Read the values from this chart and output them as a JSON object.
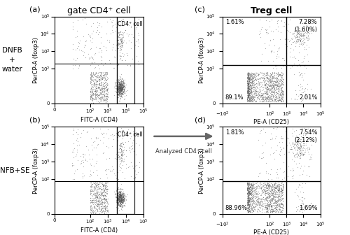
{
  "title_left": "gate CD4⁺ cell",
  "title_right": "Treg cell",
  "label_a": "(a)",
  "label_b": "(b)",
  "label_c": "(c)",
  "label_d": "(d)",
  "side_label_top": "DNFB\n+\nwater",
  "side_label_bot": "DNFB+SE",
  "xlabel_ab": "FITC-A (CD4)",
  "xlabel_cd": "PE-A (CD25)",
  "ylabel_abcd": "PerCP-A (foxp3)",
  "arrow_text": "Analyzed CD4⁺ cell",
  "gate_label": "CD4⁺ cell",
  "pct_c_ul": "1.61%",
  "pct_c_ur": "7.28%\n(1.60%)",
  "pct_c_ll": "89.1%",
  "pct_c_lr": "2.01%",
  "pct_d_ul": "1.81%",
  "pct_d_ur": "7.54%\n(2.12%)",
  "pct_d_ll": "88.96%",
  "pct_d_lr": "1.69%",
  "dot_color": "#555555",
  "dot_alpha": 0.45,
  "dot_size": 0.8,
  "background": "#ffffff",
  "line_color": "#000000",
  "box_color": "#333333",
  "font_size_label": 7,
  "font_size_title": 9,
  "font_size_pct": 6,
  "font_size_axis": 6,
  "font_size_tick": 5,
  "font_size_side": 7.5
}
